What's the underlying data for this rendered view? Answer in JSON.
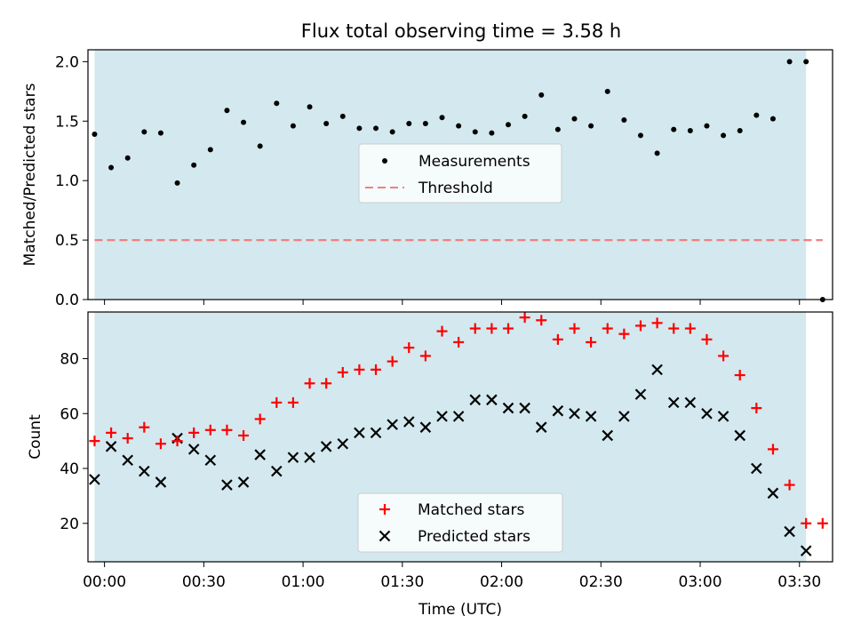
{
  "title": "Flux total observing time = 3.58 h",
  "colors": {
    "observing_band": "#d3e9ef",
    "measurement": "#000000",
    "threshold": "#f08080",
    "matched": "#ff0000",
    "predicted": "#000000"
  },
  "chart_data": [
    {
      "type": "scatter",
      "ylabel": "Matched/Predicted stars",
      "xlabel": "",
      "xlim": [
        "-00:05",
        "03:40"
      ],
      "ylim": [
        0,
        2.1
      ],
      "yticks": [
        "0.0",
        "0.5",
        "1.0",
        "1.5",
        "2.0"
      ],
      "xtick_labels_shown": false,
      "observing_window": [
        "23:57",
        "03:32"
      ],
      "legend": {
        "placement": "center",
        "entries": [
          "Measurements",
          "Threshold"
        ]
      },
      "series": [
        {
          "name": "Measurements",
          "marker": "dot",
          "x": [
            "23:57",
            "00:02",
            "00:07",
            "00:12",
            "00:17",
            "00:22",
            "00:27",
            "00:32",
            "00:37",
            "00:42",
            "00:47",
            "00:52",
            "00:57",
            "01:02",
            "01:07",
            "01:12",
            "01:17",
            "01:22",
            "01:27",
            "01:32",
            "01:37",
            "01:42",
            "01:47",
            "01:52",
            "01:57",
            "02:02",
            "02:07",
            "02:12",
            "02:17",
            "02:22",
            "02:27",
            "02:32",
            "02:37",
            "02:42",
            "02:47",
            "02:52",
            "02:57",
            "03:02",
            "03:07",
            "03:12",
            "03:17",
            "03:22",
            "03:27",
            "03:32",
            "03:37"
          ],
          "y": [
            1.39,
            1.11,
            1.19,
            1.41,
            1.4,
            0.98,
            1.13,
            1.26,
            1.59,
            1.49,
            1.29,
            1.65,
            1.46,
            1.62,
            1.48,
            1.54,
            1.44,
            1.44,
            1.41,
            1.48,
            1.48,
            1.53,
            1.46,
            1.41,
            1.4,
            1.47,
            1.54,
            1.72,
            1.43,
            1.52,
            1.46,
            1.75,
            1.51,
            1.38,
            1.23,
            1.43,
            1.42,
            1.46,
            1.38,
            1.42,
            1.55,
            1.52,
            2.0,
            2.0,
            0.0
          ]
        },
        {
          "name": "Threshold",
          "style": "dashed",
          "x": [
            "23:57",
            "03:37"
          ],
          "y": [
            0.5,
            0.5
          ]
        }
      ]
    },
    {
      "type": "scatter",
      "ylabel": "Count",
      "xlabel": "Time (UTC)",
      "xlim": [
        "-00:05",
        "03:40"
      ],
      "ylim": [
        6,
        97
      ],
      "yticks": [
        "20",
        "40",
        "60",
        "80"
      ],
      "xticks": [
        "00:00",
        "00:30",
        "01:00",
        "01:30",
        "02:00",
        "02:30",
        "03:00",
        "03:30"
      ],
      "observing_window": [
        "23:57",
        "03:32"
      ],
      "legend": {
        "placement": "lower center",
        "entries": [
          "Matched stars",
          "Predicted stars"
        ]
      },
      "series": [
        {
          "name": "Matched stars",
          "marker": "plus",
          "x": [
            "23:57",
            "00:02",
            "00:07",
            "00:12",
            "00:17",
            "00:22",
            "00:27",
            "00:32",
            "00:37",
            "00:42",
            "00:47",
            "00:52",
            "00:57",
            "01:02",
            "01:07",
            "01:12",
            "01:17",
            "01:22",
            "01:27",
            "01:32",
            "01:37",
            "01:42",
            "01:47",
            "01:52",
            "01:57",
            "02:02",
            "02:07",
            "02:12",
            "02:17",
            "02:22",
            "02:27",
            "02:32",
            "02:37",
            "02:42",
            "02:47",
            "02:52",
            "02:57",
            "03:02",
            "03:07",
            "03:12",
            "03:17",
            "03:22",
            "03:27",
            "03:32",
            "03:37"
          ],
          "y": [
            50,
            53,
            51,
            55,
            49,
            50,
            53,
            54,
            54,
            52,
            58,
            64,
            64,
            71,
            71,
            75,
            76,
            76,
            79,
            84,
            81,
            90,
            86,
            91,
            91,
            91,
            95,
            94,
            87,
            91,
            86,
            91,
            89,
            92,
            93,
            91,
            91,
            87,
            81,
            74,
            62,
            47,
            34,
            20,
            20
          ]
        },
        {
          "name": "Predicted stars",
          "marker": "x",
          "x": [
            "23:57",
            "00:02",
            "00:07",
            "00:12",
            "00:17",
            "00:22",
            "00:27",
            "00:32",
            "00:37",
            "00:42",
            "00:47",
            "00:52",
            "00:57",
            "01:02",
            "01:07",
            "01:12",
            "01:17",
            "01:22",
            "01:27",
            "01:32",
            "01:37",
            "01:42",
            "01:47",
            "01:52",
            "01:57",
            "02:02",
            "02:07",
            "02:12",
            "02:17",
            "02:22",
            "02:27",
            "02:32",
            "02:37",
            "02:42",
            "02:47",
            "02:52",
            "02:57",
            "03:02",
            "03:07",
            "03:12",
            "03:17",
            "03:22",
            "03:27",
            "03:32"
          ],
          "y": [
            36,
            48,
            43,
            39,
            35,
            51,
            47,
            43,
            34,
            35,
            45,
            39,
            44,
            44,
            48,
            49,
            53,
            53,
            56,
            57,
            55,
            59,
            59,
            65,
            65,
            62,
            62,
            55,
            61,
            60,
            59,
            52,
            59,
            67,
            76,
            64,
            64,
            60,
            59,
            52,
            40,
            31,
            17,
            10
          ]
        }
      ]
    }
  ]
}
